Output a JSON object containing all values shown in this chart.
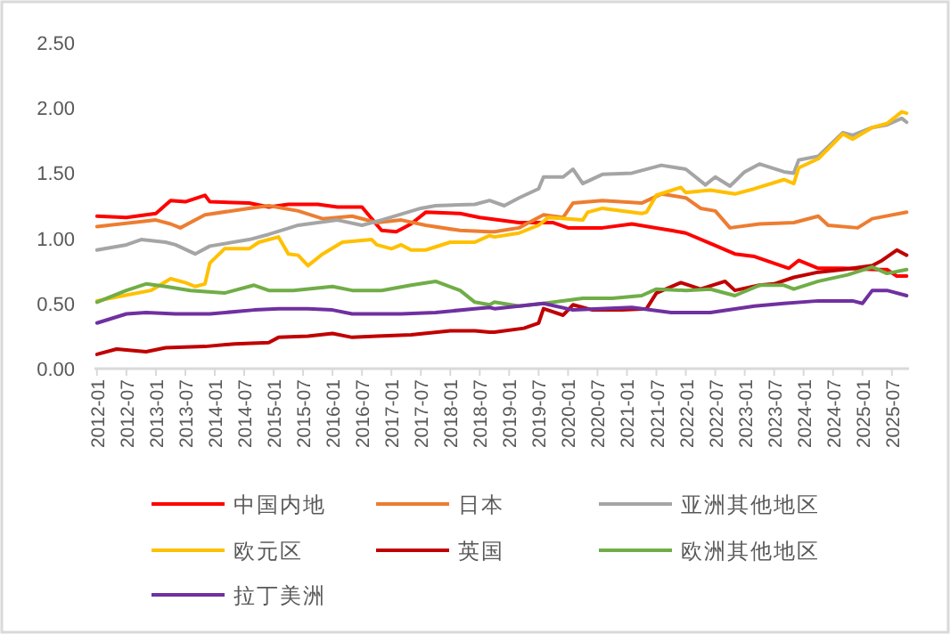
{
  "chart_data": {
    "type": "line",
    "xlim": [
      "2011-12-16",
      "2025-10-16"
    ],
    "ylim": [
      0,
      2.5
    ],
    "xticks": [
      "2012-01",
      "2012-07",
      "2013-01",
      "2013-07",
      "2014-01",
      "2014-07",
      "2015-01",
      "2015-07",
      "2016-01",
      "2016-07",
      "2017-01",
      "2017-07",
      "2018-01",
      "2018-07",
      "2019-01",
      "2019-07",
      "2020-01",
      "2020-07",
      "2021-01",
      "2021-07",
      "2022-01",
      "2022-07",
      "2023-01",
      "2023-07",
      "2024-01",
      "2024-07",
      "2025-01",
      "2025-07"
    ],
    "yticks": [
      {
        "value": 0,
        "label": "0.00"
      },
      {
        "value": 0.5,
        "label": "0.50"
      },
      {
        "value": 1,
        "label": "1.00"
      },
      {
        "value": 1.5,
        "label": "1.50"
      },
      {
        "value": 2,
        "label": "2.00"
      },
      {
        "value": 2.5,
        "label": "2.50"
      }
    ],
    "grid": false,
    "legend": "bottom",
    "marker": "none",
    "line_style": "solid",
    "series": [
      {
        "name": "中国内地",
        "color": "#ff0000",
        "x": [
          "2012-01",
          "2012-07",
          "2013-01",
          "2013-04",
          "2013-07",
          "2013-11",
          "2013-12",
          "2014-08",
          "2014-12",
          "2015-04",
          "2015-10",
          "2016-02",
          "2016-07",
          "2016-11",
          "2017-02",
          "2017-05",
          "2017-08",
          "2018-03",
          "2018-07",
          "2019-03",
          "2019-10",
          "2020-01",
          "2020-08",
          "2021-02",
          "2021-10",
          "2022-01",
          "2022-06",
          "2022-11",
          "2023-03",
          "2023-10",
          "2023-12",
          "2024-04",
          "2024-09",
          "2025-04",
          "2025-06",
          "2025-08",
          "2025-10"
        ],
        "values": [
          1.17,
          1.16,
          1.19,
          1.29,
          1.28,
          1.33,
          1.28,
          1.27,
          1.24,
          1.26,
          1.26,
          1.24,
          1.24,
          1.06,
          1.05,
          1.11,
          1.2,
          1.19,
          1.16,
          1.12,
          1.12,
          1.08,
          1.08,
          1.11,
          1.06,
          1.04,
          0.96,
          0.88,
          0.86,
          0.77,
          0.83,
          0.77,
          0.77,
          0.76,
          0.76,
          0.71,
          0.71
        ]
      },
      {
        "name": "日本",
        "color": "#ed7d31",
        "x": [
          "2012-01",
          "2013-01",
          "2013-04",
          "2013-06",
          "2013-11",
          "2014-08",
          "2014-12",
          "2015-06",
          "2015-11",
          "2016-05",
          "2016-10",
          "2017-03",
          "2017-08",
          "2018-03",
          "2018-09",
          "2018-10",
          "2019-03",
          "2019-08",
          "2019-12",
          "2020-02",
          "2020-08",
          "2021-04",
          "2021-08",
          "2022-01",
          "2022-04",
          "2022-07",
          "2022-10",
          "2023-04",
          "2023-11",
          "2024-04",
          "2024-06",
          "2024-12",
          "2025-03",
          "2025-10"
        ],
        "values": [
          1.09,
          1.14,
          1.11,
          1.08,
          1.18,
          1.23,
          1.25,
          1.21,
          1.15,
          1.17,
          1.12,
          1.14,
          1.1,
          1.06,
          1.05,
          1.05,
          1.08,
          1.18,
          1.16,
          1.27,
          1.29,
          1.27,
          1.34,
          1.31,
          1.23,
          1.21,
          1.08,
          1.11,
          1.12,
          1.17,
          1.1,
          1.08,
          1.15,
          1.2
        ]
      },
      {
        "name": "亚洲其他地区",
        "color": "#a5a5a5",
        "x": [
          "2012-01",
          "2012-07",
          "2012-10",
          "2013-03",
          "2013-05",
          "2013-09",
          "2013-12",
          "2014-08",
          "2014-12",
          "2015-06",
          "2016-02",
          "2016-07",
          "2016-11",
          "2017-07",
          "2017-10",
          "2018-06",
          "2018-09",
          "2018-12",
          "2019-03",
          "2019-07",
          "2019-08",
          "2019-12",
          "2020-02",
          "2020-04",
          "2020-08",
          "2021-02",
          "2021-08",
          "2022-01",
          "2022-05",
          "2022-07",
          "2022-10",
          "2023-01",
          "2023-04",
          "2023-09",
          "2023-11",
          "2023-12",
          "2024-04",
          "2024-09",
          "2024-11",
          "2025-03",
          "2025-06",
          "2025-09",
          "2025-10"
        ],
        "values": [
          0.91,
          0.95,
          0.99,
          0.97,
          0.95,
          0.88,
          0.94,
          0.99,
          1.03,
          1.1,
          1.14,
          1.1,
          1.14,
          1.23,
          1.25,
          1.26,
          1.29,
          1.25,
          1.31,
          1.38,
          1.47,
          1.47,
          1.53,
          1.42,
          1.49,
          1.5,
          1.56,
          1.53,
          1.41,
          1.47,
          1.4,
          1.51,
          1.57,
          1.51,
          1.5,
          1.6,
          1.63,
          1.81,
          1.79,
          1.85,
          1.87,
          1.92,
          1.89
        ]
      },
      {
        "name": "欧元区",
        "color": "#ffc000",
        "x": [
          "2012-01",
          "2012-05",
          "2012-12",
          "2013-04",
          "2013-07",
          "2013-09",
          "2013-11",
          "2013-12",
          "2014-03",
          "2014-08",
          "2014-10",
          "2015-02",
          "2015-04",
          "2015-06",
          "2015-08",
          "2015-11",
          "2016-03",
          "2016-09",
          "2016-10",
          "2017-01",
          "2017-03",
          "2017-05",
          "2017-08",
          "2018-01",
          "2018-06",
          "2018-09",
          "2018-10",
          "2019-03",
          "2019-07",
          "2019-09",
          "2020-01",
          "2020-04",
          "2020-05",
          "2020-08",
          "2021-04",
          "2021-05",
          "2021-07",
          "2021-12",
          "2022-01",
          "2022-06",
          "2022-11",
          "2023-03",
          "2023-09",
          "2023-11",
          "2023-12",
          "2024-04",
          "2024-09",
          "2024-11",
          "2025-03",
          "2025-06",
          "2025-09",
          "2025-10"
        ],
        "values": [
          0.52,
          0.55,
          0.6,
          0.69,
          0.66,
          0.63,
          0.65,
          0.81,
          0.92,
          0.92,
          0.97,
          1.01,
          0.88,
          0.87,
          0.79,
          0.88,
          0.97,
          0.99,
          0.95,
          0.92,
          0.95,
          0.91,
          0.91,
          0.97,
          0.97,
          1.02,
          1.01,
          1.04,
          1.1,
          1.16,
          1.15,
          1.14,
          1.2,
          1.23,
          1.19,
          1.2,
          1.33,
          1.39,
          1.35,
          1.37,
          1.34,
          1.38,
          1.45,
          1.42,
          1.54,
          1.61,
          1.8,
          1.76,
          1.85,
          1.88,
          1.97,
          1.96
        ]
      },
      {
        "name": "英国",
        "color": "#c00000",
        "x": [
          "2012-01",
          "2012-05",
          "2012-11",
          "2013-03",
          "2013-11",
          "2014-05",
          "2014-12",
          "2015-02",
          "2015-08",
          "2016-01",
          "2016-05",
          "2016-10",
          "2017-05",
          "2018-01",
          "2018-06",
          "2018-09",
          "2018-10",
          "2019-04",
          "2019-07",
          "2019-08",
          "2019-12",
          "2020-02",
          "2020-06",
          "2020-12",
          "2021-05",
          "2021-07",
          "2021-12",
          "2022-04",
          "2022-09",
          "2022-11",
          "2023-04",
          "2023-07",
          "2023-11",
          "2024-04",
          "2024-09",
          "2025-03",
          "2025-05",
          "2025-08",
          "2025-10"
        ],
        "values": [
          0.11,
          0.15,
          0.13,
          0.16,
          0.17,
          0.19,
          0.2,
          0.24,
          0.25,
          0.27,
          0.24,
          0.25,
          0.26,
          0.29,
          0.29,
          0.28,
          0.28,
          0.31,
          0.35,
          0.46,
          0.41,
          0.49,
          0.45,
          0.45,
          0.46,
          0.58,
          0.66,
          0.61,
          0.67,
          0.6,
          0.64,
          0.65,
          0.7,
          0.74,
          0.76,
          0.79,
          0.83,
          0.91,
          0.87
        ]
      },
      {
        "name": "欧洲其他地区",
        "color": "#70ad47",
        "x": [
          "2012-01",
          "2012-07",
          "2012-11",
          "2013-03",
          "2013-08",
          "2014-03",
          "2014-09",
          "2014-12",
          "2015-05",
          "2016-01",
          "2016-05",
          "2016-11",
          "2017-05",
          "2017-10",
          "2018-03",
          "2018-06",
          "2018-09",
          "2018-10",
          "2019-03",
          "2019-08",
          "2020-04",
          "2020-10",
          "2021-04",
          "2021-07",
          "2022-01",
          "2022-06",
          "2022-11",
          "2023-04",
          "2023-09",
          "2023-11",
          "2024-04",
          "2024-10",
          "2025-03",
          "2025-06",
          "2025-10"
        ],
        "values": [
          0.51,
          0.6,
          0.65,
          0.63,
          0.6,
          0.58,
          0.64,
          0.6,
          0.6,
          0.63,
          0.6,
          0.6,
          0.64,
          0.67,
          0.6,
          0.51,
          0.49,
          0.51,
          0.48,
          0.5,
          0.54,
          0.54,
          0.56,
          0.61,
          0.6,
          0.61,
          0.56,
          0.64,
          0.64,
          0.61,
          0.67,
          0.72,
          0.78,
          0.73,
          0.76
        ]
      },
      {
        "name": "拉丁美洲",
        "color": "#7030a0",
        "x": [
          "2012-01",
          "2012-07",
          "2012-11",
          "2013-05",
          "2013-12",
          "2014-09",
          "2015-02",
          "2015-08",
          "2016-01",
          "2016-05",
          "2017-03",
          "2017-10",
          "2018-06",
          "2018-09",
          "2018-10",
          "2019-08",
          "2020-02",
          "2021-02",
          "2021-10",
          "2022-06",
          "2023-03",
          "2023-09",
          "2024-04",
          "2024-11",
          "2025-01",
          "2025-03",
          "2025-06",
          "2025-10"
        ],
        "values": [
          0.35,
          0.42,
          0.43,
          0.42,
          0.42,
          0.45,
          0.46,
          0.46,
          0.45,
          0.42,
          0.42,
          0.43,
          0.46,
          0.47,
          0.46,
          0.5,
          0.45,
          0.47,
          0.43,
          0.43,
          0.48,
          0.5,
          0.52,
          0.52,
          0.5,
          0.6,
          0.6,
          0.56
        ]
      }
    ]
  }
}
